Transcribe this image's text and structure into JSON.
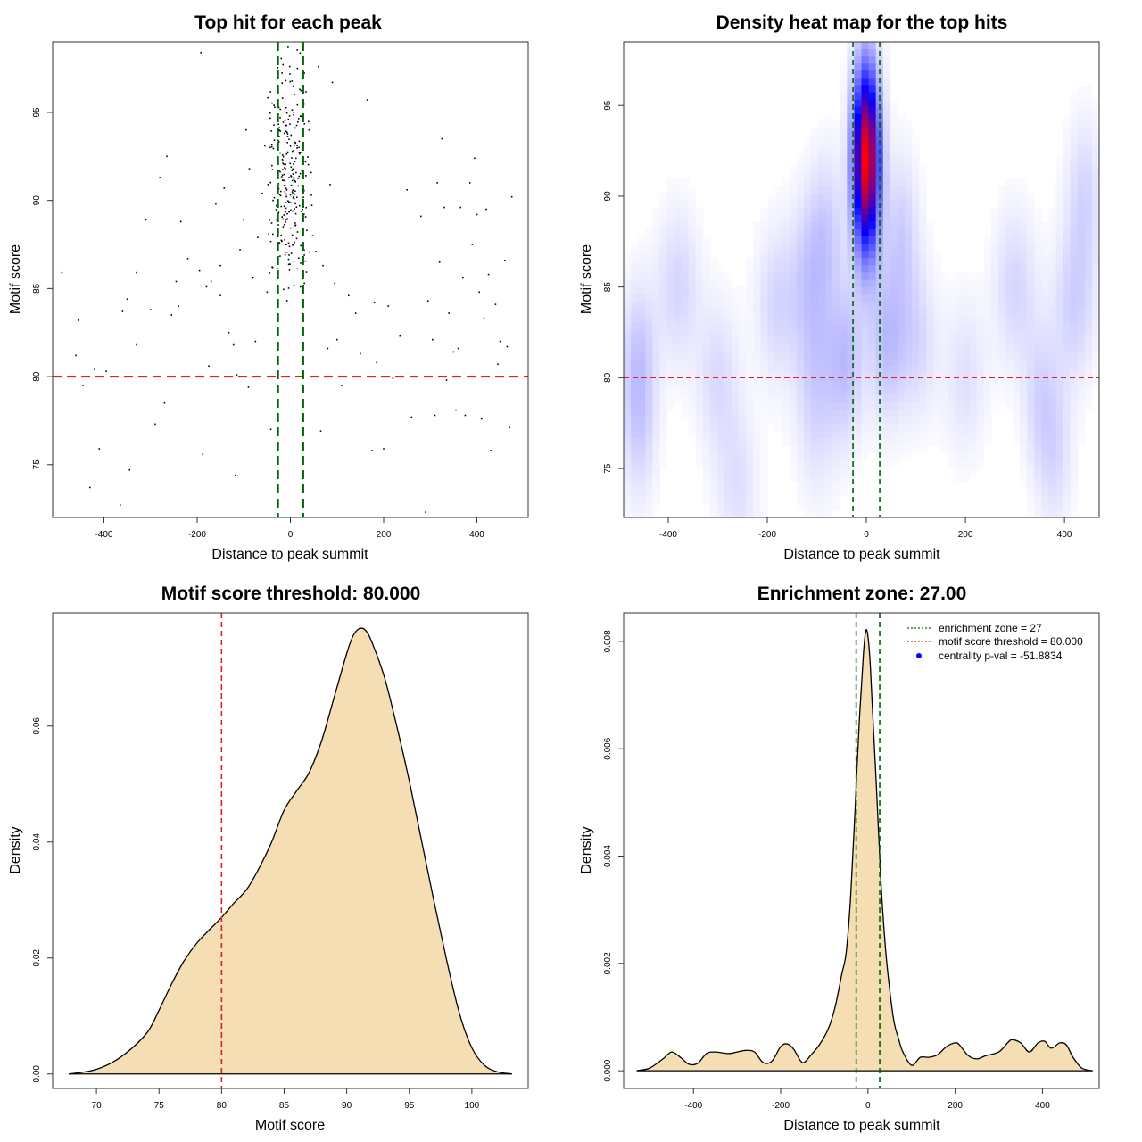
{
  "chart_data": [
    {
      "type": "scatter",
      "title": "Top hit for each peak",
      "xlabel": "Distance to peak summit",
      "ylabel": "Motif score",
      "xlim": [
        -510,
        510
      ],
      "ylim": [
        72,
        99
      ],
      "xticks": [
        -400,
        -200,
        0,
        200,
        400
      ],
      "yticks": [
        75,
        80,
        85,
        90,
        95
      ],
      "xtick_labels": [
        "-400",
        "-200",
        "0",
        "200",
        "400"
      ],
      "ytick_labels": [
        "75",
        "80",
        "85",
        "90",
        "95"
      ],
      "threshold": 80,
      "enrichment_zone": 27,
      "colors": {
        "points": "#000000",
        "threshold": "#dd2222",
        "zone": "#006400"
      },
      "points": [
        [
          -490,
          85.9
        ],
        [
          -460,
          81.2
        ],
        [
          -455,
          83.2
        ],
        [
          -445,
          79.5
        ],
        [
          -430,
          73.7
        ],
        [
          -420,
          80.4
        ],
        [
          -410,
          75.9
        ],
        [
          -395,
          80.3
        ],
        [
          -365,
          72.7
        ],
        [
          -360,
          83.7
        ],
        [
          -350,
          84.4
        ],
        [
          -345,
          74.7
        ],
        [
          -330,
          81.8
        ],
        [
          -330,
          85.9
        ],
        [
          -310,
          88.9
        ],
        [
          -300,
          83.8
        ],
        [
          -290,
          77.3
        ],
        [
          -280,
          91.3
        ],
        [
          -270,
          78.5
        ],
        [
          -265,
          92.5
        ],
        [
          -255,
          83.5
        ],
        [
          -245,
          85.4
        ],
        [
          -240,
          84.0
        ],
        [
          -235,
          88.8
        ],
        [
          -220,
          86.7
        ],
        [
          -195,
          86.0
        ],
        [
          -192,
          98.4
        ],
        [
          -188,
          75.6
        ],
        [
          -180,
          85.1
        ],
        [
          -175,
          80.6
        ],
        [
          -170,
          85.4
        ],
        [
          -160,
          89.8
        ],
        [
          -150,
          86.3
        ],
        [
          -150,
          84.6
        ],
        [
          -142,
          90.7
        ],
        [
          -132,
          82.5
        ],
        [
          -122,
          81.8
        ],
        [
          -118,
          74.4
        ],
        [
          -115,
          80.1
        ],
        [
          -108,
          87.2
        ],
        [
          -100,
          88.9
        ],
        [
          -95,
          94.0
        ],
        [
          -90,
          79.4
        ],
        [
          -88,
          91.8
        ],
        [
          -80,
          85.6
        ],
        [
          -75,
          82.0
        ],
        [
          -70,
          87.9
        ],
        [
          -60,
          90.4
        ],
        [
          -55,
          93.1
        ],
        [
          -50,
          84.8
        ],
        [
          -48,
          90.9
        ],
        [
          -42,
          77.0
        ],
        [
          -38,
          86.2
        ],
        [
          -35,
          95.4
        ],
        [
          -30,
          89.7
        ],
        [
          -22,
          94.7
        ],
        [
          -10,
          96.8
        ],
        [
          -5,
          98.7
        ],
        [
          5,
          89.4
        ],
        [
          10,
          93.3
        ],
        [
          15,
          97.5
        ],
        [
          20,
          96.3
        ],
        [
          24,
          91.7
        ],
        [
          30,
          85.3
        ],
        [
          40,
          94.0
        ],
        [
          45,
          90.3
        ],
        [
          55,
          87.1
        ],
        [
          60,
          97.6
        ],
        [
          65,
          76.9
        ],
        [
          70,
          86.3
        ],
        [
          80,
          81.6
        ],
        [
          85,
          90.9
        ],
        [
          90,
          96.7
        ],
        [
          95,
          85.3
        ],
        [
          100,
          82.1
        ],
        [
          110,
          79.5
        ],
        [
          125,
          84.6
        ],
        [
          140,
          83.6
        ],
        [
          150,
          81.3
        ],
        [
          165,
          95.7
        ],
        [
          175,
          75.8
        ],
        [
          180,
          84.2
        ],
        [
          185,
          80.8
        ],
        [
          200,
          75.9
        ],
        [
          210,
          84.0
        ],
        [
          220,
          79.9
        ],
        [
          235,
          82.3
        ],
        [
          250,
          90.6
        ],
        [
          260,
          77.7
        ],
        [
          280,
          89.1
        ],
        [
          290,
          72.3
        ],
        [
          295,
          84.3
        ],
        [
          305,
          82.1
        ],
        [
          310,
          77.8
        ],
        [
          315,
          91.0
        ],
        [
          320,
          86.5
        ],
        [
          325,
          93.5
        ],
        [
          330,
          89.6
        ],
        [
          335,
          79.8
        ],
        [
          340,
          83.6
        ],
        [
          350,
          81.4
        ],
        [
          355,
          78.1
        ],
        [
          360,
          81.6
        ],
        [
          365,
          89.6
        ],
        [
          370,
          85.6
        ],
        [
          375,
          77.8
        ],
        [
          385,
          91.0
        ],
        [
          390,
          87.5
        ],
        [
          395,
          92.4
        ],
        [
          400,
          89.2
        ],
        [
          405,
          84.8
        ],
        [
          410,
          77.6
        ],
        [
          415,
          83.3
        ],
        [
          420,
          89.5
        ],
        [
          425,
          85.8
        ],
        [
          430,
          75.8
        ],
        [
          440,
          84.1
        ],
        [
          445,
          80.7
        ],
        [
          450,
          82.0
        ],
        [
          460,
          86.6
        ],
        [
          465,
          81.7
        ],
        [
          470,
          77.1
        ],
        [
          475,
          90.2
        ]
      ]
    },
    {
      "type": "heatmap",
      "title": "Density heat map for the top hits",
      "xlabel": "Distance to peak summit",
      "ylabel": "Motif score",
      "xlim": [
        -490,
        470
      ],
      "ylim": [
        72.3,
        98.5
      ],
      "xticks": [
        -400,
        -200,
        0,
        200,
        400
      ],
      "yticks": [
        75,
        80,
        85,
        90,
        95
      ],
      "xtick_labels": [
        "-400",
        "-200",
        "0",
        "200",
        "400"
      ],
      "ytick_labels": [
        "75",
        "80",
        "85",
        "90",
        "95"
      ],
      "threshold": 80,
      "enrichment_zone": 27,
      "colors": {
        "low": "#ffffff",
        "mid": "#0000ff",
        "high": "#ff0000",
        "threshold": "#dd2222",
        "zone": "#006400"
      },
      "peak": {
        "x": 0,
        "y": 92,
        "sx": 18,
        "sy": 3.4
      }
    },
    {
      "type": "area",
      "title": "Motif score threshold: 80.000",
      "xlabel": "Motif score",
      "ylabel": "Density",
      "xlim": [
        66.5,
        104.5
      ],
      "ylim": [
        -0.0025,
        0.0795
      ],
      "xticks": [
        70,
        75,
        80,
        85,
        90,
        95,
        100
      ],
      "yticks": [
        0,
        0.02,
        0.04,
        0.06
      ],
      "xtick_labels": [
        "70",
        "75",
        "80",
        "85",
        "90",
        "95",
        "100"
      ],
      "ytick_labels": [
        "0.00",
        "0.02",
        "0.04",
        "0.06"
      ],
      "threshold": 80,
      "colors": {
        "fill": "#f5deb3",
        "line": "#000000",
        "threshold": "#dd2222"
      },
      "x": [
        67.8,
        70,
        72,
        74,
        75,
        76,
        77,
        78,
        79,
        80,
        81,
        82,
        83,
        84,
        85,
        86,
        87,
        88,
        89,
        90,
        90.5,
        91,
        91.5,
        92,
        93,
        94,
        95,
        96,
        97,
        98,
        99,
        100,
        101,
        102,
        103.2
      ],
      "y": [
        0,
        0.0008,
        0.003,
        0.007,
        0.011,
        0.0155,
        0.0195,
        0.0225,
        0.0248,
        0.027,
        0.0295,
        0.0318,
        0.0355,
        0.04,
        0.0455,
        0.0488,
        0.052,
        0.0575,
        0.065,
        0.0725,
        0.0755,
        0.0768,
        0.0765,
        0.0745,
        0.0685,
        0.06,
        0.0505,
        0.04,
        0.0295,
        0.0195,
        0.0105,
        0.0045,
        0.0015,
        0.0004,
        0
      ]
    },
    {
      "type": "area",
      "title": "Enrichment zone: 27.00",
      "xlabel": "Distance to peak summit",
      "ylabel": "Density",
      "xlim": [
        -560,
        530
      ],
      "ylim": [
        -0.00033,
        0.00853
      ],
      "xticks": [
        -400,
        -200,
        0,
        200,
        400
      ],
      "yticks": [
        0,
        0.002,
        0.004,
        0.006,
        0.008
      ],
      "xtick_labels": [
        "-400",
        "-200",
        "0",
        "200",
        "400"
      ],
      "ytick_labels": [
        "0.000",
        "0.002",
        "0.004",
        "0.006",
        "0.008"
      ],
      "enrichment_zone": 27,
      "colors": {
        "fill": "#f5deb3",
        "line": "#000000",
        "zone": "#006400",
        "threshold": "#dd2222",
        "pval": "#0000ff"
      },
      "x": [
        -530,
        -500,
        -470,
        -450,
        -430,
        -410,
        -390,
        -370,
        -350,
        -320,
        -300,
        -280,
        -260,
        -240,
        -220,
        -200,
        -185,
        -170,
        -150,
        -130,
        -110,
        -90,
        -75,
        -60,
        -50,
        -40,
        -30,
        -20,
        -10,
        -5,
        0,
        5,
        10,
        20,
        30,
        40,
        50,
        60,
        70,
        80,
        100,
        120,
        140,
        160,
        180,
        200,
        210,
        230,
        250,
        270,
        300,
        320,
        330,
        350,
        370,
        390,
        405,
        420,
        440,
        455,
        470,
        490,
        515
      ],
      "y": [
        0,
        5e-05,
        0.00022,
        0.00035,
        0.00025,
        0.00012,
        0.00014,
        0.00032,
        0.00035,
        0.00032,
        0.00035,
        0.00038,
        0.00035,
        0.00015,
        0.00018,
        0.00045,
        0.0005,
        0.0004,
        0.00015,
        0.0003,
        0.0005,
        0.0008,
        0.0012,
        0.0018,
        0.0022,
        0.0032,
        0.0048,
        0.0065,
        0.0078,
        0.0082,
        0.0081,
        0.0076,
        0.0068,
        0.0052,
        0.0035,
        0.0023,
        0.0015,
        0.0009,
        0.0006,
        0.00035,
        0.0001,
        0.00025,
        0.00025,
        0.0003,
        0.00045,
        0.00052,
        0.00048,
        0.00028,
        0.00022,
        0.00028,
        0.00035,
        0.00052,
        0.00058,
        0.00052,
        0.00035,
        0.00052,
        0.00055,
        0.00042,
        0.00052,
        0.00048,
        0.00025,
        5e-05,
        0
      ]
    }
  ],
  "legend": {
    "zone_label": "enrichment zone = 27",
    "threshold_label": "motif score threshold = 80.000",
    "pval_label": "centrality p-val = -51.8834"
  }
}
